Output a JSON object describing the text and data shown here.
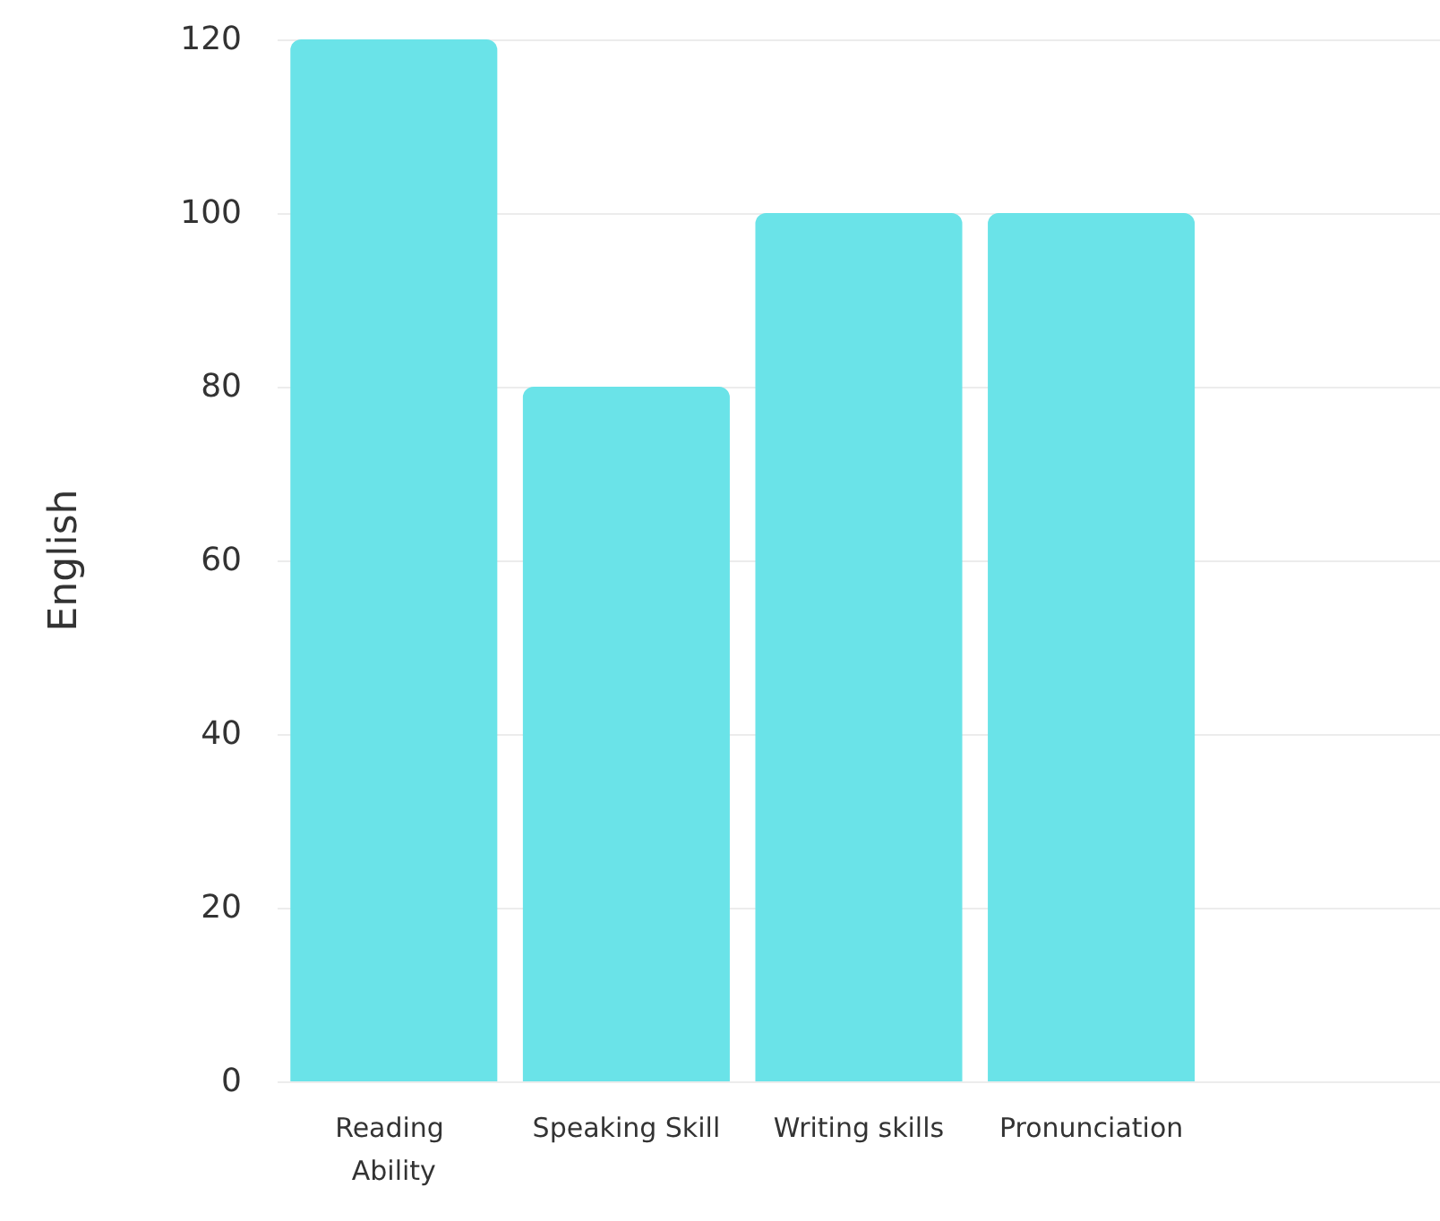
{
  "chart_data": {
    "type": "bar",
    "ylabel": "English",
    "categories": [
      "Reading Ability",
      "Speaking Skill",
      "Writing skills",
      "Pronunciation",
      null
    ],
    "values": [
      120,
      80,
      100,
      100,
      null
    ],
    "color": "#6ae3e8",
    "ylim": [
      0,
      120
    ],
    "yticks": [
      0,
      20,
      40,
      60,
      80,
      100,
      120
    ],
    "grid": "y"
  }
}
